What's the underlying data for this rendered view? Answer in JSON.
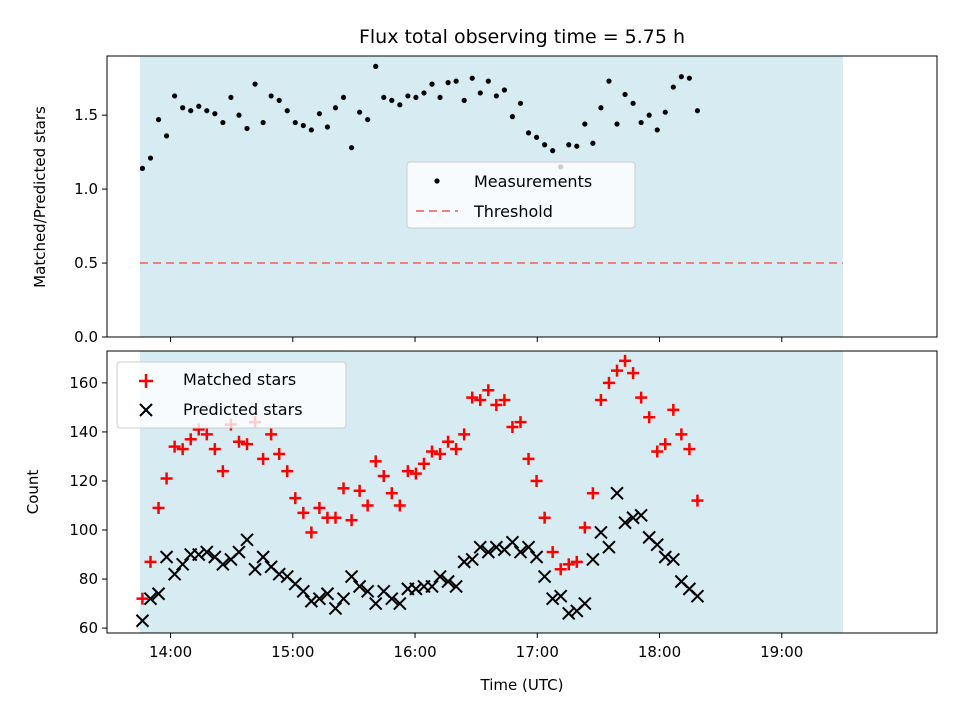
{
  "chart_data": [
    {
      "type": "scatter",
      "title": "Flux total observing time = 5.75 h",
      "xlabel": "",
      "ylabel": "Matched/Predicted stars",
      "ylim": [
        0,
        1.9
      ],
      "yticks": [
        "0.0",
        "0.5",
        "1.0",
        "1.5"
      ],
      "shaded_span_utc_hours": [
        13.75,
        19.5
      ],
      "shade_color": "#add8e6",
      "legend_position": "center",
      "x_start_utc_hours": 13.77,
      "x_step_hours": 0.0658,
      "series": [
        {
          "name": "Measurements",
          "marker": "dot",
          "color": "#000000",
          "values": [
            1.14,
            1.21,
            1.47,
            1.36,
            1.63,
            1.55,
            1.53,
            1.56,
            1.53,
            1.51,
            1.45,
            1.62,
            1.5,
            1.41,
            1.71,
            1.45,
            1.63,
            1.6,
            1.53,
            1.45,
            1.43,
            1.4,
            1.51,
            1.42,
            1.55,
            1.62,
            1.28,
            1.52,
            1.47,
            1.83,
            1.62,
            1.6,
            1.57,
            1.63,
            1.62,
            1.65,
            1.71,
            1.62,
            1.72,
            1.73,
            1.6,
            1.75,
            1.65,
            1.73,
            1.63,
            1.67,
            1.49,
            1.58,
            1.38,
            1.35,
            1.3,
            1.26,
            1.15,
            1.3,
            1.29,
            1.44,
            1.31,
            1.55,
            1.73,
            1.44,
            1.64,
            1.58,
            1.45,
            1.5,
            1.4,
            1.52,
            1.69,
            1.76,
            1.75,
            1.53
          ]
        },
        {
          "name": "Threshold",
          "marker": "dashed-line",
          "color": "#f08080",
          "value": 0.5
        }
      ]
    },
    {
      "type": "scatter",
      "title": "",
      "xlabel": "Time (UTC)",
      "ylabel": "Count",
      "ylim": [
        58,
        173
      ],
      "yticks": [
        "60",
        "80",
        "100",
        "120",
        "140",
        "160"
      ],
      "xlim_utc_hours": [
        13.48,
        20.27
      ],
      "xticks": [
        "14:00",
        "15:00",
        "16:00",
        "17:00",
        "18:00",
        "19:00"
      ],
      "shaded_span_utc_hours": [
        13.75,
        19.5
      ],
      "shade_color": "#add8e6",
      "legend_position": "top-left",
      "x_start_utc_hours": 13.77,
      "x_step_hours": 0.0658,
      "series": [
        {
          "name": "Matched stars",
          "marker": "plus",
          "color": "#ff0000",
          "values": [
            72,
            87,
            109,
            121,
            134,
            133,
            137,
            141,
            139,
            133,
            124,
            143,
            136,
            135,
            144,
            129,
            139,
            131,
            124,
            113,
            107,
            99,
            109,
            105,
            105,
            117,
            104,
            116,
            110,
            128,
            122,
            115,
            110,
            124,
            123,
            127,
            132,
            131,
            136,
            133,
            139,
            154,
            153,
            157,
            151,
            153,
            142,
            144,
            129,
            120,
            105,
            91,
            84,
            86,
            87,
            101,
            115,
            153,
            160,
            165,
            169,
            164,
            154,
            146,
            132,
            135,
            149,
            139,
            133,
            112
          ]
        },
        {
          "name": "Predicted stars",
          "marker": "x",
          "color": "#000000",
          "values": [
            63,
            72,
            74,
            89,
            82,
            86,
            90,
            90,
            91,
            89,
            86,
            88,
            91,
            96,
            84,
            89,
            85,
            82,
            81,
            78,
            75,
            71,
            72,
            74,
            68,
            72,
            81,
            77,
            75,
            70,
            75,
            72,
            70,
            76,
            76,
            77,
            77,
            81,
            79,
            77,
            87,
            88,
            93,
            91,
            93,
            92,
            95,
            91,
            93,
            89,
            81,
            72,
            73,
            66,
            67,
            70,
            88,
            99,
            93,
            115,
            103,
            105,
            106,
            97,
            94,
            89,
            88,
            79,
            76,
            73
          ]
        }
      ]
    }
  ]
}
